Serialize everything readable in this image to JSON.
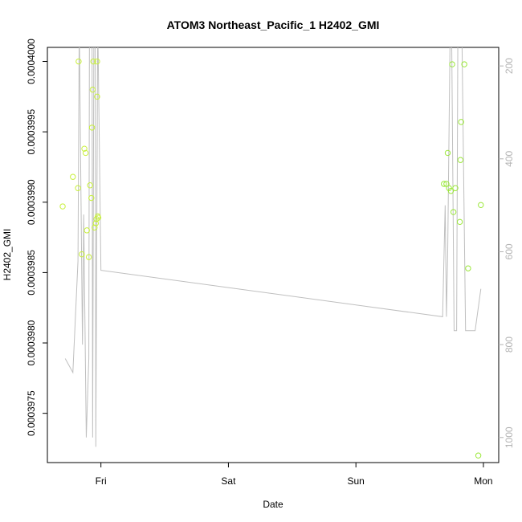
{
  "chart_data": {
    "type": "scatter",
    "title": "ATOM3 Northeast_Pacific_1 H2402_GMI",
    "xlabel": "Date",
    "ylabel": "H2402_GMI",
    "x_unit": "days",
    "x_ticks": [
      {
        "label": "Fri",
        "value": 1.0
      },
      {
        "label": "Sat",
        "value": 2.0
      },
      {
        "label": "Sun",
        "value": 3.0
      },
      {
        "label": "Mon",
        "value": 4.0
      }
    ],
    "xlim": [
      0.58,
      4.12
    ],
    "ylim": [
      0.00039715,
      0.0004001
    ],
    "y_ticks": [
      {
        "label": "0.0003975",
        "value": 0.0003975
      },
      {
        "label": "0.0003980",
        "value": 0.000398
      },
      {
        "label": "0.0003985",
        "value": 0.0003985
      },
      {
        "label": "0.0003990",
        "value": 0.000399
      },
      {
        "label": "0.0003995",
        "value": 0.0003995
      },
      {
        "label": "0.0004000",
        "value": 0.0004
      }
    ],
    "y2lim": [
      1054,
      160
    ],
    "y2_ticks": [
      {
        "label": "200",
        "value": 200
      },
      {
        "label": "400",
        "value": 400
      },
      {
        "label": "600",
        "value": 600
      },
      {
        "label": "800",
        "value": 800
      },
      {
        "label": "1000",
        "value": 1000
      }
    ],
    "grid": false,
    "series": [
      {
        "kind": "points",
        "color": "#c8f03c",
        "x": [
          0.7,
          0.78,
          0.82,
          0.825,
          0.85,
          0.87,
          0.88,
          0.89,
          0.905,
          0.915,
          0.925,
          0.93,
          0.935,
          0.94,
          0.95,
          0.96,
          0.97,
          0.97
        ],
        "y": [
          0.00039897,
          0.00039918,
          0.0003991,
          0.0004,
          0.00039863,
          0.00039938,
          0.00039935,
          0.0003988,
          0.00039861,
          0.00039912,
          0.00039903,
          0.00039953,
          0.0003998,
          0.0004,
          0.00039882,
          0.00039885,
          0.00039975,
          0.0004
        ]
      },
      {
        "kind": "points",
        "color": "#c8f03c",
        "x": [
          0.965,
          0.975,
          0.98
        ],
        "y": [
          0.00039888,
          0.0003989,
          0.00039889
        ]
      },
      {
        "kind": "points",
        "color": "#9be83a",
        "x": [
          3.69,
          3.71,
          3.72,
          3.73,
          3.745,
          3.755,
          3.765,
          3.78,
          3.815,
          3.82,
          3.825,
          3.85,
          3.88,
          3.98
        ],
        "y": [
          0.00039913,
          0.00039913,
          0.00039935,
          0.0003991,
          0.00039908,
          0.00039998,
          0.00039893,
          0.0003991,
          0.00039886,
          0.0003993,
          0.00039957,
          0.00039998,
          0.00039853,
          0.00039898
        ]
      },
      {
        "kind": "points",
        "color": "#9be83a",
        "x": [
          3.96
        ],
        "y": [
          0.0003972
        ]
      },
      {
        "kind": "line",
        "color": "#bfbfbf",
        "x": [
          0.72,
          0.78,
          0.82,
          0.83,
          0.855,
          0.865,
          0.885,
          0.905,
          0.91,
          0.93,
          0.935,
          0.945,
          0.955,
          0.96,
          0.975,
          1.0,
          3.68,
          3.7,
          3.71,
          3.72,
          3.74,
          3.75,
          3.77,
          3.79,
          3.8,
          3.83,
          3.86,
          3.875,
          3.93,
          3.935,
          3.98
        ],
        "y": [
          830,
          860,
          620,
          100,
          800,
          520,
          1000,
          830,
          100,
          100,
          1000,
          100,
          100,
          1020,
          100,
          640,
          740,
          500,
          740,
          600,
          100,
          100,
          770,
          770,
          100,
          100,
          770,
          770,
          770,
          770,
          680
        ]
      }
    ]
  }
}
